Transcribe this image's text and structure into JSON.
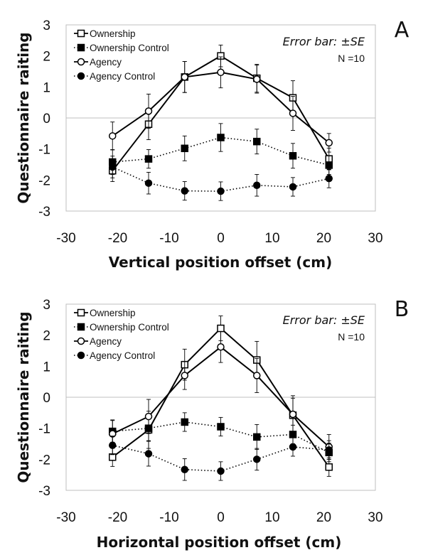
{
  "colors": {
    "ink": "#000000",
    "frame": "#bfbfbf",
    "zero_line": "#bfbfbf",
    "background": "#ffffff"
  },
  "chart_data": [
    {
      "type": "line",
      "panel_label": "A",
      "xlabel": "Vertical position offset (cm)",
      "ylabel": "Questionnaire raiting",
      "xlim": [
        -30,
        30
      ],
      "ylim": [
        -3,
        3
      ],
      "xticks": [
        -30,
        -20,
        -10,
        0,
        10,
        20,
        30
      ],
      "yticks": [
        3,
        2,
        1,
        0,
        -1,
        -2,
        -3
      ],
      "error_note": "Error bar: ±SE",
      "n_label": "N =10",
      "legend_position": "top-left",
      "grid": false,
      "x": [
        -21,
        -14,
        -7,
        0,
        7,
        14,
        21
      ],
      "series": [
        {
          "name": "Ownership",
          "marker": "square-open",
          "line": "solid",
          "values": [
            -1.7,
            -0.2,
            1.32,
            2.0,
            1.28,
            0.65,
            -1.32
          ],
          "se": [
            0.35,
            0.5,
            0.5,
            0.35,
            0.45,
            0.55,
            0.35
          ]
        },
        {
          "name": "Ownership Control",
          "marker": "square-filled",
          "line": "dotted",
          "values": [
            -1.42,
            -1.32,
            -0.98,
            -0.63,
            -0.76,
            -1.22,
            -1.52
          ],
          "se": [
            0.4,
            0.3,
            0.4,
            0.45,
            0.4,
            0.4,
            0.3
          ]
        },
        {
          "name": "Agency",
          "marker": "circle-open",
          "line": "solid",
          "values": [
            -0.58,
            0.22,
            1.32,
            1.47,
            1.25,
            0.15,
            -0.8
          ],
          "se": [
            0.45,
            0.55,
            0.5,
            0.5,
            0.45,
            0.55,
            0.3
          ]
        },
        {
          "name": "Agency Control",
          "marker": "circle-filled",
          "line": "dotted",
          "values": [
            -1.58,
            -2.1,
            -2.35,
            -2.36,
            -2.17,
            -2.22,
            -1.95
          ],
          "se": [
            0.35,
            0.35,
            0.3,
            0.3,
            0.35,
            0.3,
            0.3
          ]
        }
      ]
    },
    {
      "type": "line",
      "panel_label": "B",
      "xlabel": "Horizontal position offset (cm)",
      "ylabel": "Questionnaire raiting",
      "xlim": [
        -30,
        30
      ],
      "ylim": [
        -3,
        3
      ],
      "xticks": [
        -30,
        -20,
        -10,
        0,
        10,
        20,
        30
      ],
      "yticks": [
        3,
        2,
        1,
        0,
        -1,
        -2,
        -3
      ],
      "error_note": "Error bar: ±SE",
      "n_label": "N =10",
      "legend_position": "top-left",
      "grid": false,
      "x": [
        -21,
        -14,
        -7,
        0,
        7,
        14,
        21
      ],
      "series": [
        {
          "name": "Ownership",
          "marker": "square-open",
          "line": "solid",
          "values": [
            -1.93,
            -1.05,
            1.05,
            2.22,
            1.2,
            -0.58,
            -2.25
          ],
          "se": [
            0.3,
            0.6,
            0.5,
            0.4,
            0.6,
            0.55,
            0.3
          ]
        },
        {
          "name": "Ownership Control",
          "marker": "square-filled",
          "line": "dotted",
          "values": [
            -1.1,
            -1.0,
            -0.8,
            -0.95,
            -1.28,
            -1.2,
            -1.78
          ],
          "se": [
            0.35,
            0.4,
            0.3,
            0.3,
            0.4,
            0.3,
            0.3
          ]
        },
        {
          "name": "Agency",
          "marker": "circle-open",
          "line": "solid",
          "values": [
            -1.18,
            -0.62,
            0.7,
            1.62,
            0.7,
            -0.55,
            -1.6
          ],
          "se": [
            0.45,
            0.55,
            0.45,
            0.5,
            0.55,
            0.6,
            0.4
          ]
        },
        {
          "name": "Agency Control",
          "marker": "circle-filled",
          "line": "dotted",
          "values": [
            -1.55,
            -1.82,
            -2.33,
            -2.38,
            -2.0,
            -1.6,
            -1.7
          ],
          "se": [
            0.3,
            0.4,
            0.35,
            0.3,
            0.35,
            0.3,
            0.3
          ]
        }
      ]
    }
  ]
}
